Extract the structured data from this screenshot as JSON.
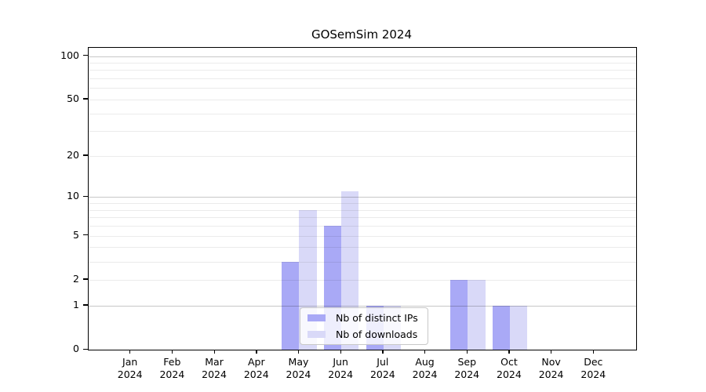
{
  "title": "GOSemSim 2024",
  "chart_data": {
    "type": "bar",
    "title": "GOSemSim 2024",
    "categories": [
      "Jan",
      "Feb",
      "Mar",
      "Apr",
      "May",
      "Jun",
      "Jul",
      "Aug",
      "Sep",
      "Oct",
      "Nov",
      "Dec"
    ],
    "category_year": "2024",
    "series": [
      {
        "name": "Nb of distinct IPs",
        "color": "#a9a9f6",
        "values": [
          0,
          0,
          0,
          0,
          3,
          6,
          1,
          0,
          2,
          1,
          0,
          0
        ]
      },
      {
        "name": "Nb of downloads",
        "color": "#d9d9f8",
        "values": [
          0,
          0,
          0,
          0,
          8,
          11,
          1,
          0,
          2,
          1,
          0,
          0
        ]
      }
    ],
    "y_axis": {
      "scale": "log10(value+1)",
      "tick_values": [
        0,
        1,
        2,
        5,
        10,
        20,
        50,
        100
      ],
      "tick_labels": [
        "0",
        "1",
        "2",
        "5",
        "10",
        "20",
        "50",
        "100"
      ],
      "max": 114
    },
    "grid": {
      "major_values": [
        1,
        10,
        100
      ],
      "minor_values": [
        2,
        3,
        4,
        5,
        6,
        7,
        8,
        9,
        20,
        30,
        40,
        50,
        60,
        70,
        80,
        90
      ]
    },
    "legend": {
      "position": "bottom-center",
      "items": [
        "Nb of distinct IPs",
        "Nb of downloads"
      ]
    }
  }
}
